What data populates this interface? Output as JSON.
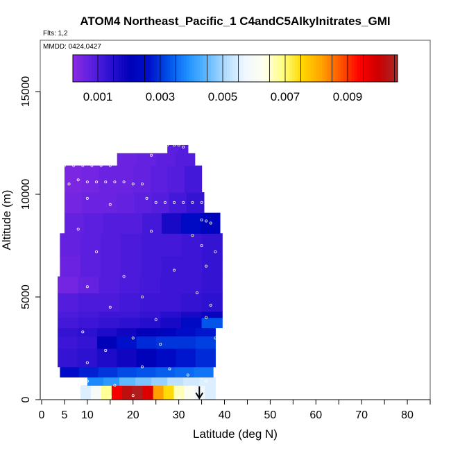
{
  "header": {
    "title": "ATOM4 Northeast_Pacific_1 C4andC5Alkylnitrates_GMI",
    "flights": "Flts: 1,2",
    "mmdd": "MMDD: 0424,0427"
  },
  "chart_data": {
    "type": "heatmap",
    "title": "ATOM4 Northeast_Pacific_1 C4andC5Alkylnitrates_GMI",
    "xlabel": "Latitude (deg N)",
    "ylabel": "Altitude (m)",
    "xlim": [
      0,
      85
    ],
    "ylim": [
      0,
      17500
    ],
    "x_ticks": [
      0,
      5,
      10,
      20,
      30,
      40,
      50,
      60,
      70,
      80
    ],
    "y_ticks": [
      0,
      5000,
      10000,
      15000
    ],
    "colorbar": {
      "range": [
        0.0002,
        0.0106
      ],
      "ticks": [
        0.001,
        0.003,
        0.005,
        0.007,
        0.009
      ],
      "tick_labels": [
        "0.001",
        "0.003",
        "0.005",
        "0.007",
        "0.009"
      ],
      "colors": [
        "#8a2be2",
        "#5b1fe0",
        "#2a10d0",
        "#0000b8",
        "#0010cc",
        "#0050e8",
        "#1e90ff",
        "#5cb8ff",
        "#b4dcff",
        "#f0f8ff",
        "#fffff0",
        "#ffff80",
        "#ffd700",
        "#ffa500",
        "#ff5500",
        "#ff0000",
        "#cc0000",
        "#a52a2a"
      ]
    },
    "layers": [
      {
        "alt_min": 0,
        "alt_max": 700,
        "lat_min": 8.5,
        "lat_max": 38,
        "values": [
          0.0055,
          0.006,
          0.0068,
          0.0095,
          0.0102,
          0.0104,
          0.0098,
          0.0082,
          0.0075,
          0.0066,
          0.0062,
          0.0058,
          0.0055
        ]
      },
      {
        "alt_min": 700,
        "alt_max": 1100,
        "lat_min": 10,
        "lat_max": 38,
        "values": [
          0.0038,
          0.004,
          0.0045,
          0.0047,
          0.0049,
          0.0052,
          0.0054,
          0.0055
        ]
      },
      {
        "alt_min": 1100,
        "alt_max": 1600,
        "lat_min": 4,
        "lat_max": 37.5,
        "values": [
          0.0025,
          0.0028,
          0.003,
          0.0032,
          0.0033,
          0.0034,
          0.0035,
          0.0036
        ]
      },
      {
        "alt_min": 1600,
        "alt_max": 2500,
        "lat_min": 3.5,
        "lat_max": 38,
        "values": [
          0.0013,
          0.0014,
          0.0016,
          0.0018,
          0.0021,
          0.0024,
          0.0027,
          0.0029
        ]
      },
      {
        "alt_min": 2500,
        "alt_max": 3100,
        "lat_min": 3.5,
        "lat_max": 38,
        "values": [
          0.0012,
          0.0013,
          0.0021,
          0.0026,
          0.0029,
          0.003,
          0.003,
          0.0031
        ]
      },
      {
        "alt_min": 3100,
        "alt_max": 3500,
        "lat_min": 3.5,
        "lat_max": 38,
        "values": [
          0.0013,
          0.0014,
          0.0016,
          0.0018,
          0.002,
          0.0022,
          0.0025,
          0.0027
        ]
      },
      {
        "alt_min": 3500,
        "alt_max": 4000,
        "lat_min": 3.5,
        "lat_max": 39.5,
        "values": [
          0.0011,
          0.0012,
          0.0013,
          0.0014,
          0.0015,
          0.0017,
          0.0024,
          0.0033
        ]
      },
      {
        "alt_min": 4000,
        "alt_max": 4300,
        "lat_min": 3.5,
        "lat_max": 39.5,
        "values": [
          0.001,
          0.0011,
          0.0012,
          0.0012,
          0.0013,
          0.0015,
          0.0017,
          0.0019
        ]
      },
      {
        "alt_min": 4300,
        "alt_max": 5200,
        "lat_min": 3.5,
        "lat_max": 39.5,
        "values": [
          0.0009,
          0.001,
          0.001,
          0.0011,
          0.0012,
          0.0012,
          0.0013,
          0.0014
        ]
      },
      {
        "alt_min": 5200,
        "alt_max": 6000,
        "lat_min": 3.5,
        "lat_max": 39.5,
        "values": [
          0.0005,
          0.0007,
          0.0009,
          0.001,
          0.0011,
          0.0012,
          0.0012,
          0.0013
        ]
      },
      {
        "alt_min": 6000,
        "alt_max": 7000,
        "lat_min": 4,
        "lat_max": 39.5,
        "values": [
          0.0006,
          0.0008,
          0.0009,
          0.001,
          0.0011,
          0.0012,
          0.0012,
          0.0013
        ]
      },
      {
        "alt_min": 7000,
        "alt_max": 8100,
        "lat_min": 4,
        "lat_max": 39.5,
        "values": [
          0.0007,
          0.0008,
          0.0009,
          0.001,
          0.0011,
          0.0011,
          0.0012,
          0.0013
        ]
      },
      {
        "alt_min": 8100,
        "alt_max": 9100,
        "lat_min": 5,
        "lat_max": 39,
        "values": [
          0.0007,
          0.0008,
          0.0009,
          0.0009,
          0.0011,
          0.0017,
          0.0024,
          0.0022
        ]
      },
      {
        "alt_min": 9100,
        "alt_max": 10100,
        "lat_min": 5,
        "lat_max": 35.5,
        "values": [
          0.0005,
          0.0006,
          0.0006,
          0.0007,
          0.0008,
          0.0009,
          0.0011,
          0.0013
        ]
      },
      {
        "alt_min": 10100,
        "alt_max": 11400,
        "lat_min": 5,
        "lat_max": 35,
        "values": [
          0.0004,
          0.0005,
          0.0006,
          0.0006,
          0.0007,
          0.0008,
          0.0009,
          0.0011
        ]
      },
      {
        "alt_min": 11400,
        "alt_max": 12000,
        "lat_min": 16.5,
        "lat_max": 33.5,
        "values": [
          0.0006,
          0.0007,
          0.0008,
          0.0009
        ]
      },
      {
        "alt_min": 12000,
        "alt_max": 12400,
        "lat_min": 27.5,
        "lat_max": 32,
        "values": [
          0.0008,
          0.0009
        ]
      }
    ],
    "flight_track_points": [
      [
        5,
        11400
      ],
      [
        7,
        11400
      ],
      [
        9,
        11400
      ],
      [
        11,
        11400
      ],
      [
        13,
        11400
      ],
      [
        15,
        11400
      ],
      [
        6,
        10500
      ],
      [
        8,
        10700
      ],
      [
        10,
        10600
      ],
      [
        12,
        10600
      ],
      [
        14,
        10600
      ],
      [
        16,
        10600
      ],
      [
        18,
        10600
      ],
      [
        20,
        10500
      ],
      [
        22,
        10500
      ],
      [
        25,
        9600
      ],
      [
        27,
        9600
      ],
      [
        29,
        9600
      ],
      [
        31,
        9600
      ],
      [
        33,
        9600
      ],
      [
        35,
        9600
      ],
      [
        27.5,
        12400
      ],
      [
        29,
        12400
      ],
      [
        30,
        12400
      ],
      [
        31,
        12300
      ],
      [
        24,
        11900
      ],
      [
        23,
        9800
      ],
      [
        35,
        8750
      ],
      [
        36,
        8700
      ],
      [
        37,
        8600
      ],
      [
        33,
        8000
      ],
      [
        35,
        7500
      ],
      [
        38,
        7200
      ],
      [
        36,
        6500
      ],
      [
        34,
        5200
      ],
      [
        37,
        4600
      ],
      [
        36,
        4000
      ],
      [
        10,
        9800
      ],
      [
        15,
        9500
      ],
      [
        8,
        8300
      ],
      [
        12,
        7200
      ],
      [
        18,
        6000
      ],
      [
        10,
        5500
      ],
      [
        22,
        5000
      ],
      [
        15,
        4500
      ],
      [
        9,
        3300
      ],
      [
        20,
        3000
      ],
      [
        26,
        2700
      ],
      [
        14,
        2400
      ],
      [
        10,
        1800
      ],
      [
        22,
        1600
      ],
      [
        28,
        1500
      ],
      [
        32,
        1200
      ],
      [
        6,
        700
      ],
      [
        10,
        900
      ],
      [
        16,
        700
      ],
      [
        35,
        500
      ],
      [
        20,
        200
      ],
      [
        15,
        150
      ],
      [
        30,
        100
      ],
      [
        5,
        200
      ],
      [
        33,
        300
      ],
      [
        36,
        900
      ],
      [
        38,
        3000
      ],
      [
        25,
        3900
      ],
      [
        29,
        6300
      ],
      [
        24,
        8200
      ]
    ],
    "arrow": {
      "lat": 34.5,
      "alt_from": 650,
      "alt_to": 0
    }
  }
}
